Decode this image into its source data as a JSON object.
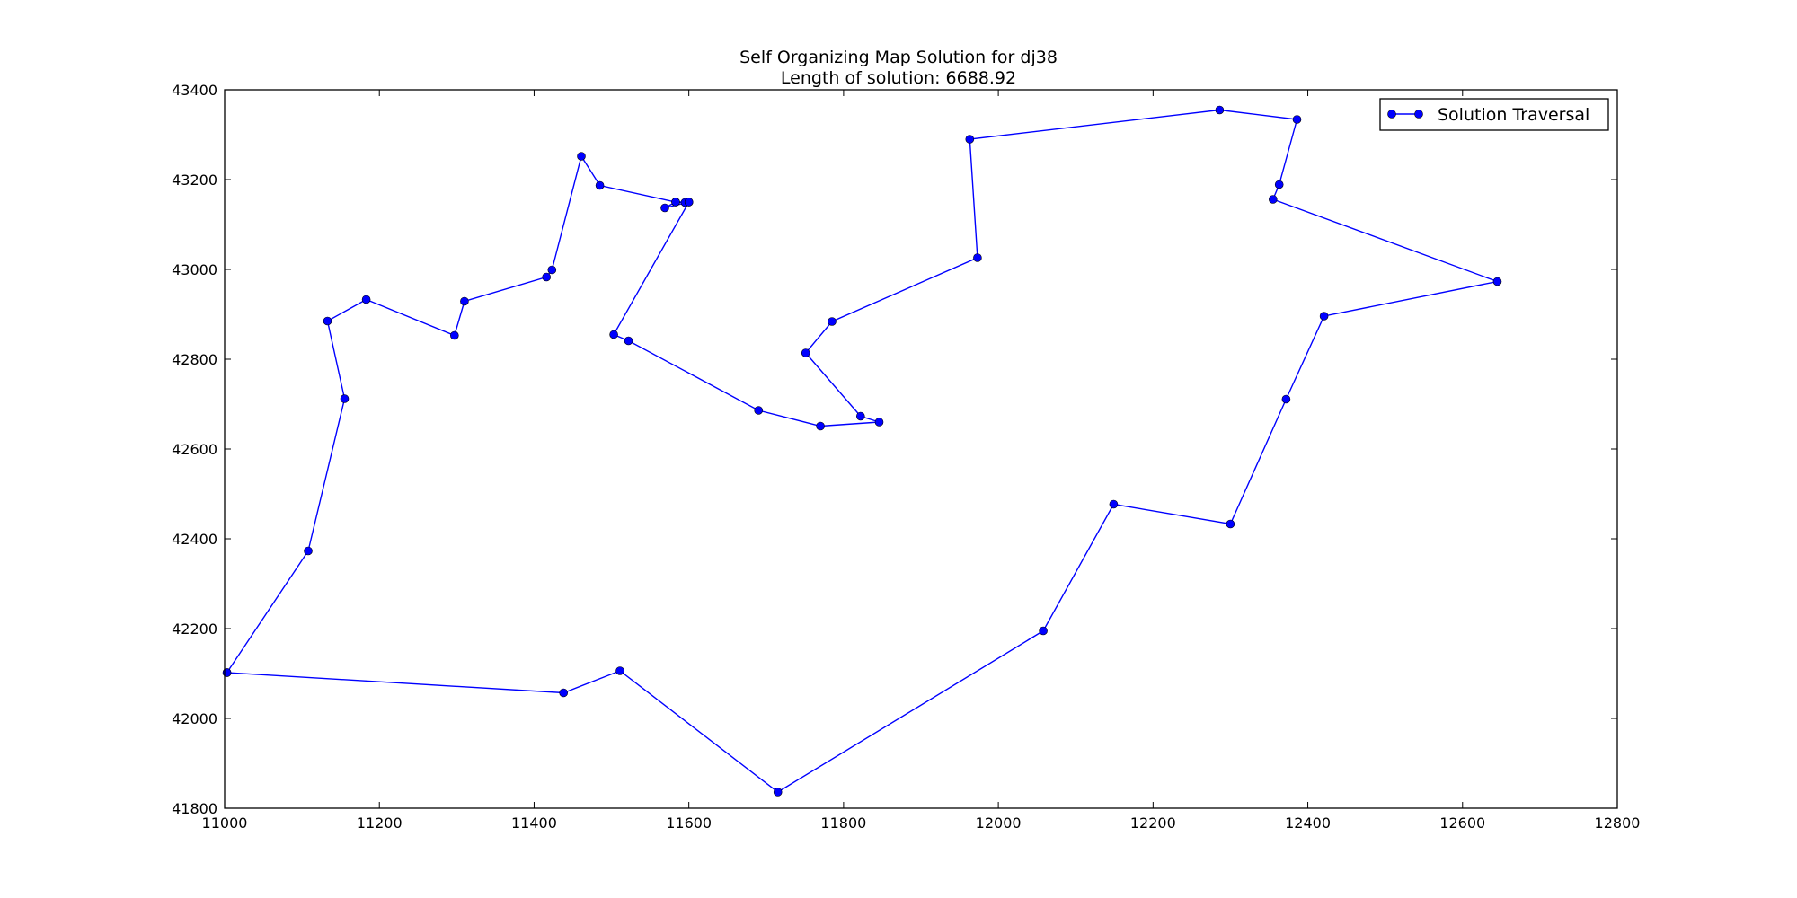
{
  "chart_data": {
    "type": "line",
    "title": "Self Organizing Map Solution for dj38",
    "subtitle": "Length of solution: 6688.92",
    "xlim": [
      11000,
      12800
    ],
    "ylim": [
      41800,
      43400
    ],
    "x_ticks": [
      "11000",
      "11200",
      "11400",
      "11600",
      "11800",
      "12000",
      "12200",
      "12400",
      "12600",
      "12800"
    ],
    "y_ticks": [
      "41800",
      "42000",
      "42200",
      "42400",
      "42600",
      "42800",
      "43000",
      "43200",
      "43400"
    ],
    "grid": false,
    "legend_position": "top-right",
    "series": [
      {
        "name": "Solution Traversal",
        "color": "#0000ff",
        "marker": "circle",
        "points": [
          [
            11003,
            42102
          ],
          [
            11108,
            42373
          ],
          [
            11155,
            42712
          ],
          [
            11133,
            42885
          ],
          [
            11183,
            42933
          ],
          [
            11297,
            42853
          ],
          [
            11310,
            42929
          ],
          [
            11416,
            42983
          ],
          [
            11423,
            42999
          ],
          [
            11461,
            43252
          ],
          [
            11485,
            43187
          ],
          [
            11583,
            43150
          ],
          [
            11595,
            43149
          ],
          [
            11600,
            43150
          ],
          [
            11569,
            43137
          ],
          [
            11583,
            43150
          ],
          [
            11600,
            43150
          ],
          [
            11503,
            42855
          ],
          [
            11522,
            42841
          ],
          [
            11690,
            42686
          ],
          [
            11770,
            42651
          ],
          [
            11846,
            42660
          ],
          [
            11822,
            42673
          ],
          [
            11751,
            42814
          ],
          [
            11785,
            42884
          ],
          [
            11973,
            43026
          ],
          [
            11963,
            43290
          ],
          [
            12286,
            43355
          ],
          [
            12386,
            43334
          ],
          [
            12363,
            43189
          ],
          [
            12355,
            43156
          ],
          [
            12645,
            42973
          ],
          [
            12421,
            42896
          ],
          [
            12372,
            42711
          ],
          [
            12300,
            42433
          ],
          [
            12149,
            42477
          ],
          [
            12058,
            42195
          ],
          [
            11715,
            41836
          ],
          [
            11511,
            42106
          ],
          [
            11438,
            42057
          ],
          [
            11003,
            42102
          ]
        ]
      }
    ]
  }
}
